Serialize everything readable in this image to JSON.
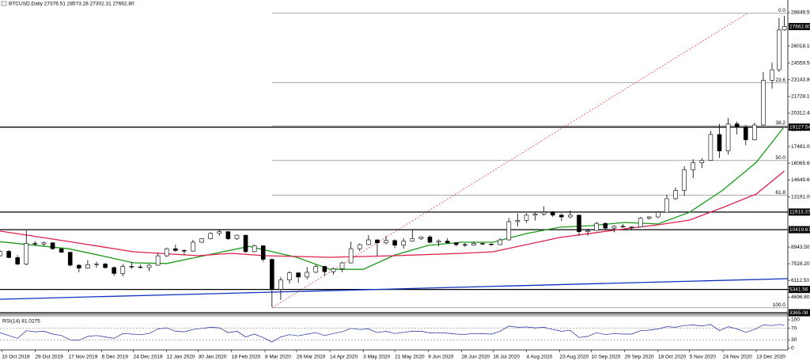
{
  "chart_data": {
    "type": "candlestick",
    "title": "BTCUSD,Daily  27376.51 28573.28 27302.31 27662.80",
    "x": [
      "2019-10-09",
      "2019-10-14",
      "2019-10-19",
      "2019-10-24",
      "2019-10-29",
      "2019-11-03",
      "2019-11-08",
      "2019-11-13",
      "2019-11-18",
      "2019-11-23",
      "2019-11-28",
      "2019-12-03",
      "2019-12-08",
      "2019-12-13",
      "2019-12-18",
      "2019-12-23",
      "2019-12-28",
      "2020-01-02",
      "2020-01-07",
      "2020-01-12",
      "2020-01-17",
      "2020-01-22",
      "2020-01-27",
      "2020-02-01",
      "2020-02-06",
      "2020-02-11",
      "2020-02-16",
      "2020-02-21",
      "2020-02-26",
      "2020-03-02",
      "2020-03-07",
      "2020-03-12",
      "2020-03-17",
      "2020-03-22",
      "2020-03-27",
      "2020-04-01",
      "2020-04-06",
      "2020-04-11",
      "2020-04-16",
      "2020-04-21",
      "2020-04-26",
      "2020-05-01",
      "2020-05-06",
      "2020-05-11",
      "2020-05-16",
      "2020-05-21",
      "2020-05-26",
      "2020-05-31",
      "2020-06-05",
      "2020-06-10",
      "2020-06-15",
      "2020-06-20",
      "2020-06-25",
      "2020-06-30",
      "2020-07-05",
      "2020-07-10",
      "2020-07-15",
      "2020-07-20",
      "2020-07-25",
      "2020-07-30",
      "2020-08-04",
      "2020-08-09",
      "2020-08-14",
      "2020-08-19",
      "2020-08-24",
      "2020-08-29",
      "2020-09-03",
      "2020-09-08",
      "2020-09-13",
      "2020-09-18",
      "2020-09-23",
      "2020-09-28",
      "2020-10-03",
      "2020-10-08",
      "2020-10-13",
      "2020-10-18",
      "2020-10-23",
      "2020-10-28",
      "2020-11-02",
      "2020-11-07",
      "2020-11-12",
      "2020-11-17",
      "2020-11-22",
      "2020-11-27",
      "2020-12-02",
      "2020-12-07",
      "2020-12-12",
      "2020-12-17",
      "2020-12-22",
      "2020-12-26",
      "2020-12-29"
    ],
    "ohlc": [
      [
        8200,
        8700,
        8150,
        8580
      ],
      [
        8580,
        8700,
        8000,
        8050
      ],
      [
        8050,
        8250,
        7400,
        7500
      ],
      [
        7500,
        10350,
        7400,
        9250
      ],
      [
        9250,
        9450,
        9050,
        9200
      ],
      [
        9200,
        9400,
        9050,
        9300
      ],
      [
        9300,
        9350,
        8700,
        8800
      ],
      [
        8800,
        8850,
        8450,
        8500
      ],
      [
        8500,
        8550,
        7300,
        7400
      ],
      [
        7400,
        7500,
        6800,
        7150
      ],
      [
        7150,
        7850,
        7100,
        7450
      ],
      [
        7450,
        7700,
        7200,
        7500
      ],
      [
        7500,
        7600,
        7100,
        7200
      ],
      [
        7200,
        7300,
        6500,
        6700
      ],
      [
        6700,
        7500,
        6450,
        7300
      ],
      [
        7300,
        7650,
        7100,
        7250
      ],
      [
        7250,
        7450,
        7150,
        7200
      ],
      [
        7200,
        7500,
        6900,
        7400
      ],
      [
        7400,
        8450,
        7350,
        8200
      ],
      [
        8200,
        8900,
        8100,
        8800
      ],
      [
        8800,
        9150,
        8550,
        8650
      ],
      [
        8650,
        8750,
        8300,
        8600
      ],
      [
        8600,
        9550,
        8550,
        9350
      ],
      [
        9350,
        9700,
        9300,
        9650
      ],
      [
        9650,
        10200,
        9600,
        10100
      ],
      [
        10100,
        10450,
        9900,
        10250
      ],
      [
        10250,
        10300,
        9550,
        9650
      ],
      [
        9650,
        10000,
        9550,
        9950
      ],
      [
        9950,
        9950,
        8450,
        8550
      ],
      [
        8550,
        9150,
        8500,
        9050
      ],
      [
        9050,
        9100,
        7700,
        7900
      ],
      [
        7900,
        7950,
        3850,
        5350
      ],
      [
        5350,
        6400,
        4450,
        6150
      ],
      [
        6150,
        6900,
        5850,
        6750
      ],
      [
        6750,
        6800,
        5900,
        6400
      ],
      [
        6400,
        7250,
        6200,
        6800
      ],
      [
        6800,
        7450,
        6750,
        7300
      ],
      [
        7300,
        7350,
        6500,
        6850
      ],
      [
        6850,
        7200,
        6600,
        7100
      ],
      [
        7100,
        7700,
        6800,
        7600
      ],
      [
        7600,
        9400,
        7550,
        8800
      ],
      [
        8800,
        9250,
        8600,
        9150
      ],
      [
        9150,
        9950,
        9100,
        9550
      ],
      [
        9550,
        9600,
        8200,
        9300
      ],
      [
        9300,
        9900,
        9150,
        9500
      ],
      [
        9500,
        9600,
        8850,
        9100
      ],
      [
        9100,
        9700,
        8800,
        9450
      ],
      [
        9450,
        10400,
        9400,
        9650
      ],
      [
        9650,
        9850,
        9550,
        9800
      ],
      [
        9800,
        9950,
        9250,
        9350
      ],
      [
        9350,
        9600,
        9000,
        9450
      ],
      [
        9450,
        9700,
        9250,
        9300
      ],
      [
        9300,
        9350,
        9000,
        9150
      ],
      [
        9150,
        9300,
        8950,
        9100
      ],
      [
        9100,
        9400,
        9050,
        9250
      ],
      [
        9250,
        9300,
        9100,
        9200
      ],
      [
        9200,
        9250,
        9050,
        9150
      ],
      [
        9150,
        9700,
        9100,
        9550
      ],
      [
        9550,
        11400,
        9500,
        11100
      ],
      [
        11100,
        11800,
        10700,
        11200
      ],
      [
        11200,
        11800,
        11000,
        11650
      ],
      [
        11650,
        11900,
        11200,
        11750
      ],
      [
        11750,
        12400,
        11600,
        11900
      ],
      [
        11900,
        12000,
        11500,
        11650
      ],
      [
        11650,
        11800,
        11150,
        11500
      ],
      [
        11500,
        12050,
        11400,
        11650
      ],
      [
        11650,
        11700,
        9900,
        10250
      ],
      [
        10250,
        10500,
        9900,
        10350
      ],
      [
        10350,
        11100,
        10300,
        10950
      ],
      [
        10950,
        11050,
        10400,
        10550
      ],
      [
        10550,
        10800,
        10200,
        10700
      ],
      [
        10700,
        10900,
        10600,
        10650
      ],
      [
        10650,
        10700,
        10400,
        10650
      ],
      [
        10650,
        11500,
        10600,
        11400
      ],
      [
        11400,
        11550,
        11250,
        11500
      ],
      [
        11500,
        12000,
        11400,
        11900
      ],
      [
        11900,
        13400,
        11850,
        13050
      ],
      [
        13050,
        14000,
        12950,
        13750
      ],
      [
        13750,
        15800,
        13300,
        15500
      ],
      [
        15500,
        16400,
        14800,
        16100
      ],
      [
        16100,
        16500,
        15650,
        16300
      ],
      [
        16300,
        18800,
        16250,
        18500
      ],
      [
        18500,
        19400,
        16500,
        17100
      ],
      [
        17100,
        19900,
        16800,
        19400
      ],
      [
        19400,
        19600,
        18500,
        19150
      ],
      [
        19150,
        19300,
        17600,
        18050
      ],
      [
        18050,
        19500,
        18000,
        19300
      ],
      [
        19300,
        23800,
        19250,
        23100
      ],
      [
        23100,
        24600,
        22400,
        24000
      ],
      [
        24000,
        28400,
        23800,
        27376.51
      ],
      [
        27376.51,
        28573.28,
        27302.31,
        27662.8
      ]
    ],
    "xlim": [
      "2019-10-09",
      "2020-12-31"
    ],
    "xticks": [
      {
        "value": "2019-10-10",
        "label": "10 Oct 2019"
      },
      {
        "value": "2019-10-29",
        "label": "29 Oct 2019"
      },
      {
        "value": "2019-11-17",
        "label": "17 Nov 2019"
      },
      {
        "value": "2019-12-06",
        "label": "6 Dec 2019"
      },
      {
        "value": "2019-12-24",
        "label": "24 Dec 2019"
      },
      {
        "value": "2020-01-12",
        "label": "12 Jan 2020"
      },
      {
        "value": "2020-01-30",
        "label": "30 Jan 2020"
      },
      {
        "value": "2020-02-18",
        "label": "18 Feb 2020"
      },
      {
        "value": "2020-03-08",
        "label": "8 Mar 2020"
      },
      {
        "value": "2020-03-26",
        "label": "26 Mar 2020"
      },
      {
        "value": "2020-04-14",
        "label": "14 Apr 2020"
      },
      {
        "value": "2020-05-03",
        "label": "3 May 2020"
      },
      {
        "value": "2020-05-21",
        "label": "21 May 2020"
      },
      {
        "value": "2020-06-09",
        "label": "9 Jun 2020"
      },
      {
        "value": "2020-06-28",
        "label": "28 Jun 2020"
      },
      {
        "value": "2020-07-16",
        "label": "16 Jul 2020"
      },
      {
        "value": "2020-08-04",
        "label": "4 Aug 2020"
      },
      {
        "value": "2020-08-23",
        "label": "23 Aug 2020"
      },
      {
        "value": "2020-09-10",
        "label": "10 Sep 2020"
      },
      {
        "value": "2020-09-29",
        "label": "29 Sep 2020"
      },
      {
        "value": "2020-10-18",
        "label": "18 Oct 2020"
      },
      {
        "value": "2020-11-05",
        "label": "5 Nov 2020"
      },
      {
        "value": "2020-11-24",
        "label": "24 Nov 2020"
      },
      {
        "value": "2020-12-13",
        "label": "13 Dec 2020"
      }
    ],
    "ylim": [
      3300,
      29920
    ],
    "yticks": [
      {
        "value": 28849.5,
        "label": "28849.50"
      },
      {
        "value": 26018.1,
        "label": "26018.10"
      },
      {
        "value": 24559.5,
        "label": "24559.50"
      },
      {
        "value": 23143.8,
        "label": "23143.80"
      },
      {
        "value": 21728.1,
        "label": "21728.10"
      },
      {
        "value": 20312.4,
        "label": "20312.40"
      },
      {
        "value": 18896.7,
        "label": "18896.70"
      },
      {
        "value": 17481,
        "label": "17481.00"
      },
      {
        "value": 16065.6,
        "label": "16065.60"
      },
      {
        "value": 14649.6,
        "label": "14649.60"
      },
      {
        "value": 13191,
        "label": "13191.00"
      },
      {
        "value": 8943.5,
        "label": "8943.50"
      },
      {
        "value": 7528.2,
        "label": "7528.20"
      },
      {
        "value": 6112.5,
        "label": "6112.50"
      },
      {
        "value": 4696.8,
        "label": "4696.80"
      }
    ],
    "current": {
      "value": 27662.8,
      "label": "27662.80"
    },
    "levels": [
      {
        "value": 19127.54,
        "label": "19127.54"
      },
      {
        "value": 11913.37,
        "label": "11913.37"
      },
      {
        "value": 10419.67,
        "label": "10419.67"
      },
      {
        "value": 5341.56,
        "label": "5341.56"
      },
      {
        "value": 3365.08,
        "label": "3365.08"
      }
    ],
    "fib": {
      "x": [
        "2020-03-12",
        "2020-12-08"
      ],
      "color": "#e03030",
      "levels": [
        {
          "value": 28790,
          "label": "0.0"
        },
        {
          "value": 22888,
          "label": "23.6"
        },
        {
          "value": 19236,
          "label": "38.2"
        },
        {
          "value": 16285,
          "label": "50.0"
        },
        {
          "value": 13334,
          "label": "61.8"
        },
        {
          "value": 3780,
          "label": "100.0"
        }
      ]
    },
    "overlays": [
      {
        "type": "line",
        "color": "#1a9a1a",
        "x": [
          "2019-10-09",
          "2019-11-17",
          "2019-12-06",
          "2019-12-24",
          "2020-01-12",
          "2020-02-28",
          "2020-03-26",
          "2020-04-14",
          "2020-05-03",
          "2020-05-21",
          "2020-06-09",
          "2020-06-28",
          "2020-07-16",
          "2020-08-04",
          "2020-08-23",
          "2020-09-10",
          "2020-09-29",
          "2020-10-18",
          "2020-11-05",
          "2020-11-24",
          "2020-12-13",
          "2020-12-29"
        ],
        "values": [
          9400,
          8800,
          8200,
          7600,
          7550,
          9000,
          8070,
          7050,
          7050,
          8270,
          9080,
          9350,
          9350,
          10090,
          10630,
          10760,
          11030,
          10900,
          11900,
          13790,
          16140,
          19170
        ]
      },
      {
        "type": "line",
        "color": "#e0204a",
        "x": [
          "2019-10-09",
          "2019-11-17",
          "2019-12-24",
          "2020-01-30",
          "2020-02-18",
          "2020-03-08",
          "2020-04-14",
          "2020-05-21",
          "2020-06-28",
          "2020-07-16",
          "2020-08-23",
          "2020-09-29",
          "2020-10-18",
          "2020-11-05",
          "2020-11-24",
          "2020-12-13",
          "2020-12-29"
        ],
        "values": [
          10300,
          9420,
          8540,
          8210,
          8410,
          8210,
          8070,
          8210,
          8410,
          8540,
          9750,
          10490,
          10830,
          11230,
          12310,
          13450,
          15400
        ]
      },
      {
        "type": "line",
        "color": "#1030c0",
        "x": [
          "2019-10-09",
          "2020-12-31"
        ],
        "values": [
          4510,
          6260
        ]
      }
    ],
    "rsi": {
      "label": "RSI(14) 81.0275",
      "color": "#1a2a9a",
      "ylim": [
        0,
        100
      ],
      "yticks": [
        100,
        70,
        30,
        0
      ],
      "values": [
        55,
        45,
        35,
        62,
        58,
        60,
        50,
        45,
        30,
        28,
        42,
        45,
        40,
        35,
        52,
        50,
        48,
        52,
        68,
        72,
        60,
        58,
        66,
        70,
        74,
        72,
        55,
        60,
        40,
        50,
        38,
        22,
        40,
        48,
        44,
        50,
        55,
        45,
        52,
        58,
        70,
        66,
        68,
        55,
        60,
        52,
        56,
        60,
        60,
        54,
        55,
        53,
        50,
        49,
        52,
        51,
        50,
        60,
        78,
        74,
        75,
        72,
        74,
        66,
        60,
        63,
        38,
        42,
        55,
        48,
        52,
        50,
        50,
        62,
        64,
        68,
        76,
        74,
        80,
        82,
        78,
        84,
        62,
        76,
        68,
        56,
        66,
        82,
        80,
        84,
        81.0275
      ]
    }
  }
}
